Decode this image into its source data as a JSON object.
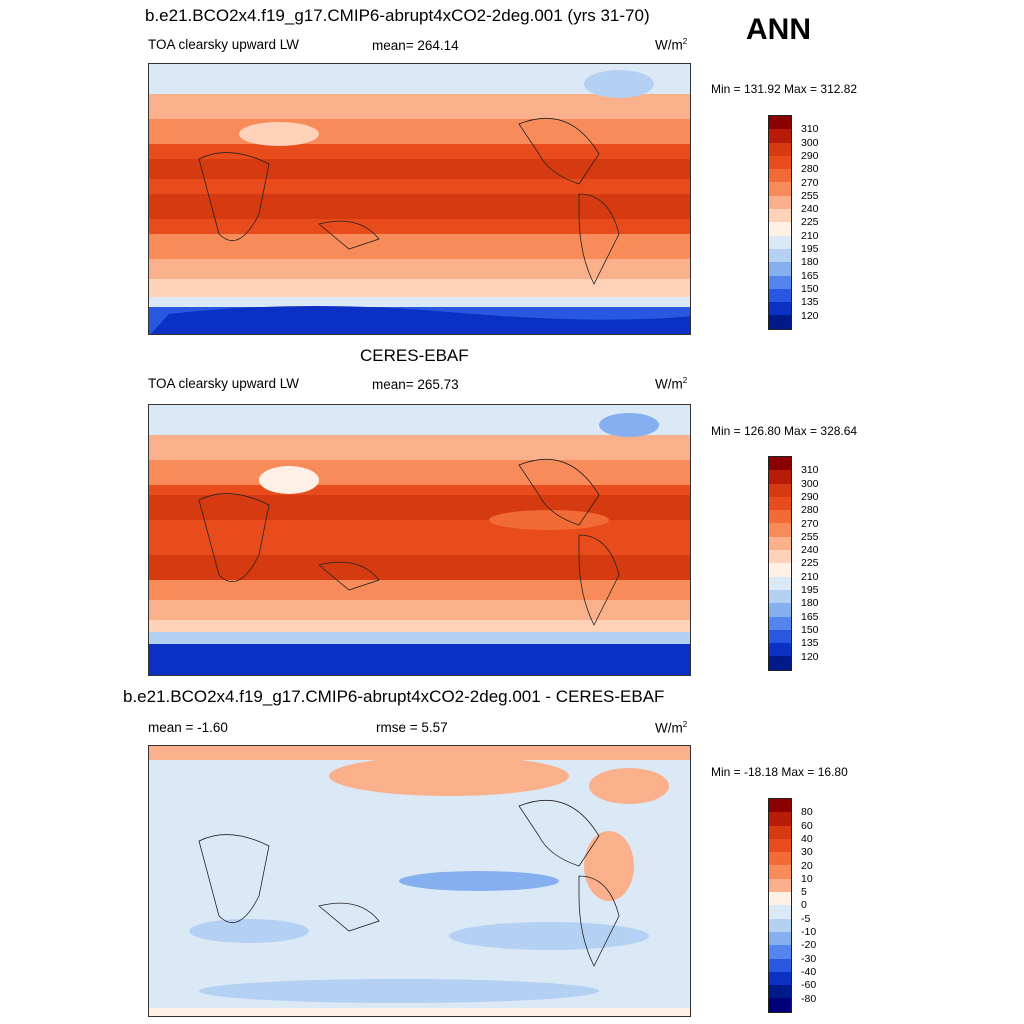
{
  "season": "ANN",
  "panels": [
    {
      "title": "b.e21.BCO2x4.f19_g17.CMIP6-abrupt4xCO2-2deg.001 (yrs 31-70)",
      "left": "TOA clearsky upward LW",
      "mid": "mean= 264.14",
      "units": "W/m",
      "units_sup": "2",
      "minmax": "Min = 131.92 Max = 312.82",
      "scale": "abs"
    },
    {
      "title": "CERES-EBAF",
      "left": "TOA clearsky upward LW",
      "mid": "mean= 265.73",
      "units": "W/m",
      "units_sup": "2",
      "minmax": "Min = 126.80 Max = 328.64",
      "scale": "abs"
    },
    {
      "title": "b.e21.BCO2x4.f19_g17.CMIP6-abrupt4xCO2-2deg.001 - CERES-EBAF",
      "left": "mean =  -1.60",
      "mid": "rmse =   5.57",
      "units": "W/m",
      "units_sup": "2",
      "minmax": "Min = -18.18 Max =  16.80",
      "scale": "diff"
    }
  ],
  "colorbars": {
    "abs": {
      "labels": [
        "310",
        "300",
        "290",
        "280",
        "270",
        "255",
        "240",
        "225",
        "210",
        "195",
        "180",
        "165",
        "150",
        "135",
        "120"
      ],
      "colors": [
        "#8b0000",
        "#b81c08",
        "#d63a10",
        "#e84c1c",
        "#f26a35",
        "#f78c5a",
        "#fab08a",
        "#fdd2b8",
        "#fff0e6",
        "#dbe9f7",
        "#b4d0f2",
        "#86aff0",
        "#5585ec",
        "#2858e0",
        "#0a30c4",
        "#001a8a"
      ]
    },
    "diff": {
      "labels": [
        "80",
        "60",
        "40",
        "30",
        "20",
        "10",
        "5",
        "0",
        "-5",
        "-10",
        "-20",
        "-30",
        "-40",
        "-60",
        "-80"
      ],
      "colors": [
        "#8b0000",
        "#b81c08",
        "#d63a10",
        "#e84c1c",
        "#f26a35",
        "#f78c5a",
        "#fab08a",
        "#fff0e6",
        "#dbe9f7",
        "#b4d0f2",
        "#86aff0",
        "#5585ec",
        "#2858e0",
        "#0a30c4",
        "#001a8a",
        "#00007a"
      ]
    }
  }
}
